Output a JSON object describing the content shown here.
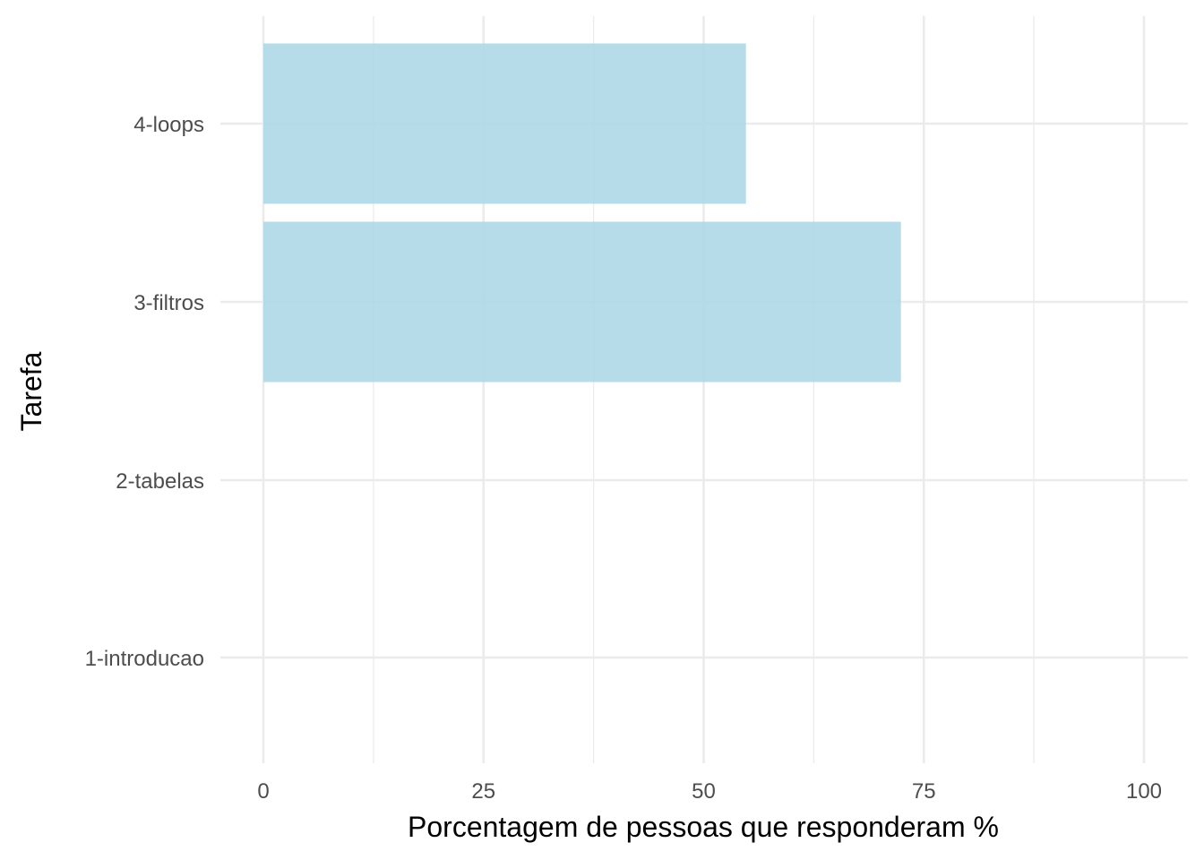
{
  "chart_data": {
    "type": "bar",
    "orientation": "horizontal",
    "categories": [
      "1-introducao",
      "2-tabelas",
      "3-filtros",
      "4-loops"
    ],
    "values": [
      0,
      0,
      72.4,
      54.8
    ],
    "xlabel": "Porcentagem de pessoas que responderam %",
    "ylabel": "Tarefa",
    "xlim": [
      0,
      100
    ],
    "xticks": [
      0,
      25,
      50,
      75,
      100
    ],
    "grid": true,
    "legend": "none",
    "bar_color": "#add8e6"
  }
}
